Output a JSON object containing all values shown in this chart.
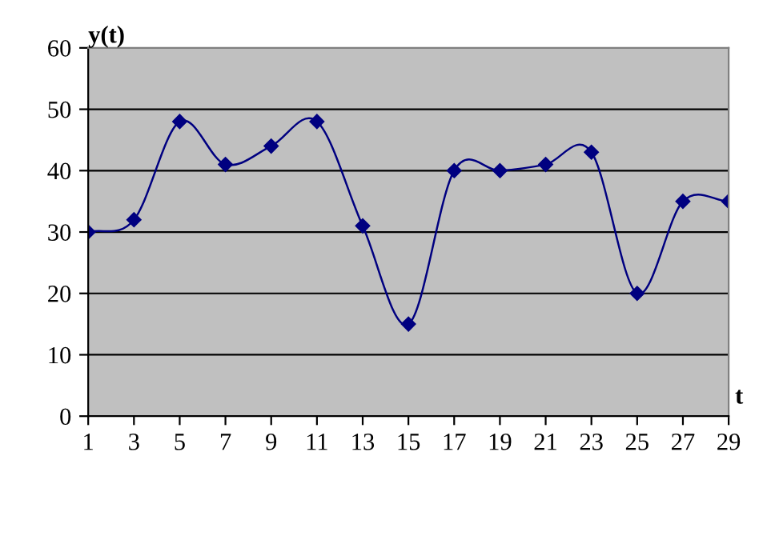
{
  "chart_data": {
    "type": "line",
    "ylabel": "y(t)",
    "xlabel": "t",
    "x": [
      1,
      3,
      5,
      7,
      9,
      11,
      13,
      15,
      17,
      19,
      21,
      23,
      25,
      27,
      29
    ],
    "series": [
      {
        "color": "#000080",
        "values": [
          30,
          32,
          48,
          41,
          44,
          48,
          31,
          15,
          40,
          40,
          41,
          43,
          20,
          35,
          35
        ]
      }
    ],
    "xlim": [
      1,
      29
    ],
    "xticks": [
      1,
      3,
      5,
      7,
      9,
      11,
      13,
      15,
      17,
      19,
      21,
      23,
      25,
      27,
      29
    ],
    "ylim": [
      0,
      60
    ],
    "yticks": [
      0,
      10,
      20,
      30,
      40,
      50,
      60
    ],
    "grid": "y",
    "marker": "diamond",
    "line_style": "solid",
    "legend": false
  }
}
